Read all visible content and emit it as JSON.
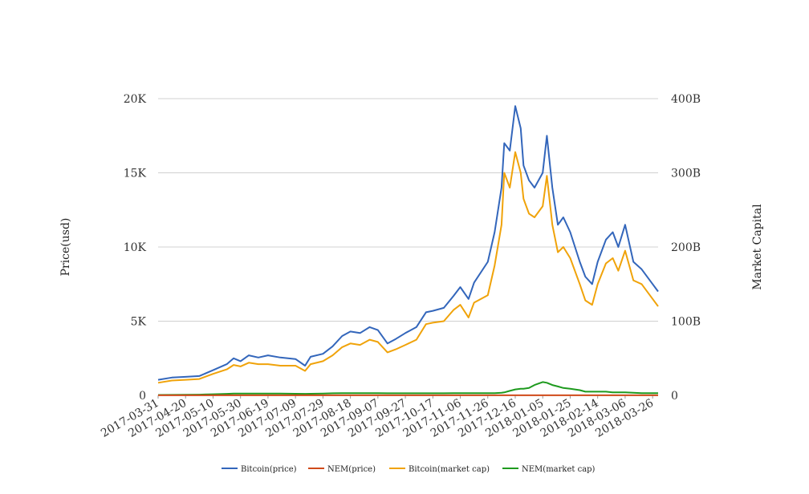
{
  "chart_data": {
    "type": "line",
    "left_axis_label": "Price(usd)",
    "right_axis_label": "Market Capital",
    "left_ticks": [
      "0",
      "5K",
      "10K",
      "15K",
      "20K"
    ],
    "right_ticks": [
      "0",
      "100B",
      "200B",
      "300B",
      "400B"
    ],
    "ylim_left": [
      0,
      20000
    ],
    "ylim_right": [
      0,
      400
    ],
    "right_unit": "billion USD",
    "grid": true,
    "legend_position": "bottom",
    "x_start": "2017-03-31",
    "x_end": "2018-03-30",
    "x_tick_labels": [
      "2017-03-31",
      "2017-04-20",
      "2017-05-10",
      "2017-05-30",
      "2017-06-19",
      "2017-07-09",
      "2017-07-29",
      "2017-08-18",
      "2017-09-07",
      "2017-09-27",
      "2017-10-17",
      "2017-11-06",
      "2017-11-26",
      "2017-12-16",
      "2018-01-05",
      "2018-01-25",
      "2018-02-14",
      "2018-03-06",
      "2018-03-26"
    ],
    "x": [
      "2017-03-31",
      "2017-04-10",
      "2017-04-20",
      "2017-04-30",
      "2017-05-10",
      "2017-05-20",
      "2017-05-25",
      "2017-05-30",
      "2017-06-05",
      "2017-06-12",
      "2017-06-19",
      "2017-06-28",
      "2017-07-09",
      "2017-07-16",
      "2017-07-20",
      "2017-07-29",
      "2017-08-05",
      "2017-08-12",
      "2017-08-18",
      "2017-08-25",
      "2017-09-01",
      "2017-09-07",
      "2017-09-14",
      "2017-09-20",
      "2017-09-27",
      "2017-10-05",
      "2017-10-12",
      "2017-10-17",
      "2017-10-25",
      "2017-11-01",
      "2017-11-06",
      "2017-11-12",
      "2017-11-16",
      "2017-11-26",
      "2017-12-01",
      "2017-12-06",
      "2017-12-08",
      "2017-12-12",
      "2017-12-16",
      "2017-12-20",
      "2017-12-22",
      "2017-12-26",
      "2017-12-30",
      "2018-01-05",
      "2018-01-08",
      "2018-01-12",
      "2018-01-16",
      "2018-01-20",
      "2018-01-25",
      "2018-02-01",
      "2018-02-05",
      "2018-02-10",
      "2018-02-14",
      "2018-02-20",
      "2018-02-25",
      "2018-03-01",
      "2018-03-06",
      "2018-03-12",
      "2018-03-18",
      "2018-03-26",
      "2018-03-30"
    ],
    "series": [
      {
        "name": "Bitcoin(price)",
        "axis": "left",
        "color": "#3366bb",
        "values": [
          1050,
          1200,
          1250,
          1300,
          1700,
          2100,
          2500,
          2300,
          2700,
          2550,
          2700,
          2550,
          2450,
          2000,
          2600,
          2800,
          3300,
          4000,
          4300,
          4200,
          4600,
          4400,
          3500,
          3800,
          4200,
          4600,
          5600,
          5700,
          5900,
          6700,
          7300,
          6500,
          7600,
          9000,
          11000,
          14000,
          17000,
          16500,
          19500,
          18000,
          15500,
          14500,
          14000,
          15000,
          17500,
          14000,
          11500,
          12000,
          11000,
          9000,
          8000,
          7500,
          9000,
          10500,
          11000,
          10000,
          11500,
          9000,
          8500,
          7500,
          7000
        ]
      },
      {
        "name": "NEM(price)",
        "axis": "left",
        "color": "#d04a1a",
        "values": [
          5,
          5,
          5,
          5,
          5,
          5,
          5,
          5,
          5,
          5,
          5,
          5,
          5,
          5,
          5,
          5,
          5,
          5,
          5,
          5,
          5,
          5,
          5,
          5,
          5,
          5,
          5,
          5,
          5,
          5,
          5,
          5,
          5,
          5,
          5,
          5,
          5,
          5,
          5,
          5,
          5,
          5,
          5,
          5,
          5,
          5,
          5,
          5,
          5,
          5,
          5,
          5,
          5,
          5,
          5,
          5,
          5,
          5,
          5,
          5,
          5
        ]
      },
      {
        "name": "Bitcoin(market cap)",
        "axis": "right",
        "color": "#f0a30a",
        "values": [
          17,
          20,
          21,
          22,
          29,
          35,
          41,
          39,
          44,
          42,
          42,
          40,
          40,
          33,
          42,
          46,
          54,
          65,
          70,
          68,
          75,
          72,
          58,
          62,
          68,
          75,
          96,
          98,
          100,
          115,
          122,
          105,
          125,
          135,
          175,
          230,
          300,
          280,
          328,
          300,
          265,
          245,
          240,
          255,
          296,
          230,
          193,
          200,
          185,
          150,
          128,
          122,
          150,
          178,
          185,
          168,
          195,
          155,
          150,
          130,
          120
        ]
      },
      {
        "name": "NEM(market cap)",
        "axis": "right",
        "color": "#1e9a1e",
        "values": [
          0.5,
          0.6,
          0.8,
          1,
          1.5,
          2,
          2.5,
          2.5,
          2.5,
          2.5,
          2.5,
          2.5,
          2.2,
          2,
          2.2,
          2.5,
          2.8,
          3,
          3,
          3,
          3,
          3,
          2.8,
          2.8,
          2.8,
          2.8,
          2.8,
          2.8,
          2.8,
          3,
          3,
          3,
          3,
          3,
          3,
          3.5,
          4,
          6,
          8,
          9,
          9,
          10,
          14,
          18,
          17,
          14,
          12,
          10,
          9,
          7,
          5,
          5,
          5,
          5,
          4,
          4,
          4,
          3.5,
          3,
          3,
          3
        ]
      }
    ]
  }
}
